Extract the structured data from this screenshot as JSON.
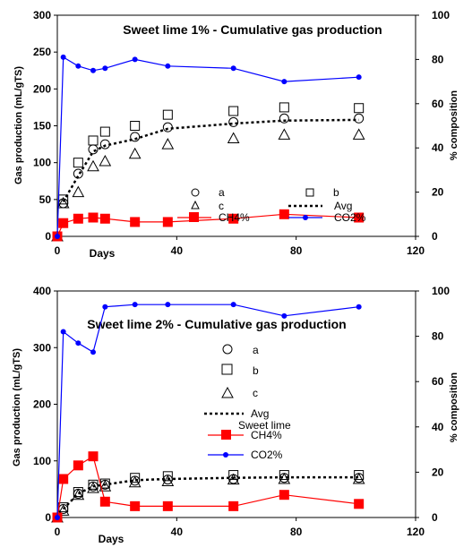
{
  "chart_data": [
    {
      "type": "scatter",
      "title": "Sweet lime 1%  - Cumulative gas production",
      "xlabel": "Days",
      "ylabel": "Gas production (mL/gTS)",
      "y2label": "% composition",
      "xlim": [
        0,
        120
      ],
      "ylim": [
        0,
        300
      ],
      "y2lim": [
        0,
        100
      ],
      "xticks": [
        "0",
        "40",
        "80",
        "120"
      ],
      "yticks": [
        "0",
        "50",
        "100",
        "150",
        "200",
        "250",
        "300"
      ],
      "y2ticks": [
        "0",
        "20",
        "40",
        "60",
        "80",
        "100"
      ],
      "x": [
        0,
        2,
        7,
        12,
        16,
        26,
        37,
        59,
        76,
        101
      ],
      "series": [
        {
          "name": "a",
          "axis": "left",
          "marker": "circle",
          "values": [
            0,
            45,
            85,
            118,
            125,
            135,
            148,
            155,
            160,
            160
          ]
        },
        {
          "name": "b",
          "axis": "left",
          "marker": "square",
          "values": [
            0,
            50,
            100,
            130,
            142,
            150,
            165,
            170,
            175,
            174
          ]
        },
        {
          "name": "c",
          "axis": "left",
          "marker": "triangle",
          "values": [
            0,
            45,
            60,
            95,
            102,
            112,
            125,
            133,
            138,
            138
          ]
        },
        {
          "name": "Avg",
          "axis": "left",
          "marker": "none",
          "line": "dotted",
          "values": [
            0,
            47,
            82,
            115,
            123,
            132,
            146,
            153,
            157,
            158
          ]
        },
        {
          "name": "CH4%",
          "axis": "right",
          "marker": "filled-square",
          "color": "#ff0000",
          "values": [
            0,
            6,
            8,
            8.5,
            8,
            6.5,
            6.5,
            8,
            10,
            8.5
          ]
        },
        {
          "name": "CO2%",
          "axis": "right",
          "marker": "dot",
          "color": "#0000ff",
          "values": [
            0,
            81,
            77,
            75,
            76,
            80,
            77,
            76,
            70,
            72
          ]
        }
      ],
      "legend": "inside-bottom"
    },
    {
      "type": "scatter",
      "title": "Sweet lime 2%  - Cumulative gas production",
      "xlabel": "Days",
      "ylabel": "Gas production (mL/gTS)",
      "y2label": "% composition",
      "xlim": [
        0,
        120
      ],
      "ylim": [
        0,
        400
      ],
      "y2lim": [
        0,
        100
      ],
      "xticks": [
        "0",
        "40",
        "80",
        "120"
      ],
      "yticks": [
        "0",
        "100",
        "200",
        "300",
        "400"
      ],
      "y2ticks": [
        "0",
        "20",
        "40",
        "60",
        "80",
        "100"
      ],
      "x": [
        0,
        2,
        7,
        12,
        16,
        26,
        37,
        59,
        76,
        101
      ],
      "series": [
        {
          "name": "a",
          "axis": "left",
          "marker": "circle",
          "values": [
            0,
            15,
            42,
            55,
            58,
            65,
            67,
            68,
            70,
            70
          ]
        },
        {
          "name": "b",
          "axis": "left",
          "marker": "square",
          "values": [
            0,
            18,
            45,
            58,
            60,
            70,
            73,
            75,
            75,
            75
          ]
        },
        {
          "name": "c",
          "axis": "left",
          "marker": "triangle",
          "values": [
            0,
            12,
            40,
            52,
            55,
            62,
            64,
            67,
            68,
            68
          ]
        },
        {
          "name": "Avg",
          "axis": "left",
          "marker": "none",
          "line": "dotted",
          "values": [
            0,
            15,
            42,
            55,
            58,
            66,
            68,
            70,
            71,
            71
          ]
        },
        {
          "name": "CH4%",
          "axis": "right",
          "marker": "filled-square",
          "color": "#ff0000",
          "values": [
            0,
            17,
            23,
            27,
            7,
            5,
            5,
            5,
            10,
            6
          ]
        },
        {
          "name": "CO2%",
          "axis": "right",
          "marker": "dot",
          "color": "#0000ff",
          "values": [
            0,
            82,
            77,
            73,
            93,
            94,
            94,
            94,
            89,
            93
          ]
        }
      ],
      "legend": "inside-center",
      "annotation": "Sweet lime"
    }
  ]
}
